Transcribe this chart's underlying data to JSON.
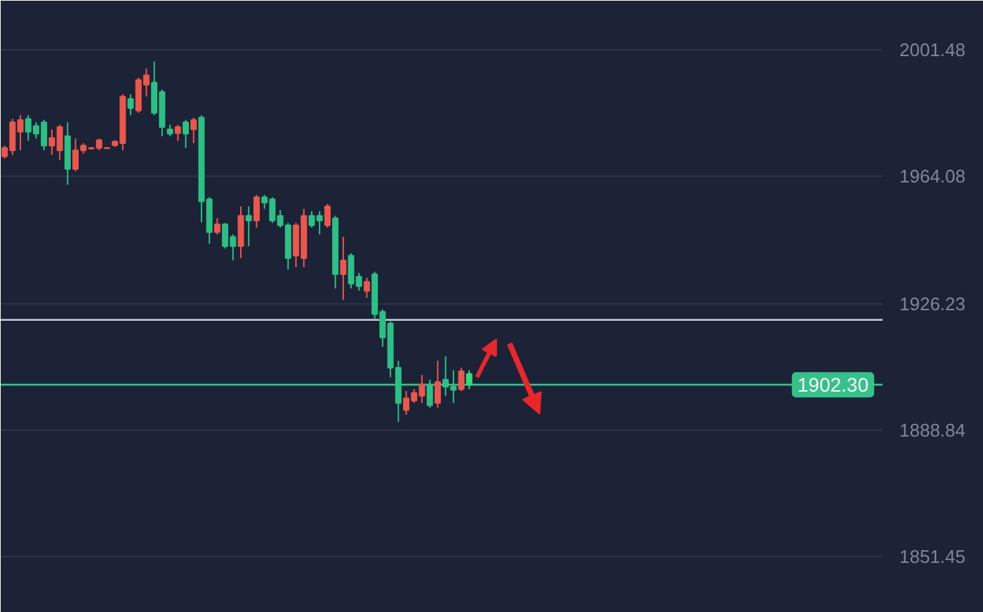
{
  "chart_data": {
    "type": "candlestick",
    "categories": [
      null,
      null,
      null,
      null,
      null,
      null,
      null,
      null,
      null,
      null,
      null,
      null,
      null,
      null,
      null,
      null,
      null,
      null,
      null,
      null,
      null,
      null,
      null,
      null,
      null,
      null,
      null,
      null,
      null,
      null,
      null,
      null,
      null,
      null,
      null,
      null,
      null,
      null,
      null,
      null,
      null,
      null,
      null,
      null,
      null,
      null,
      null,
      null,
      null,
      null,
      null,
      null,
      null,
      null,
      null,
      null,
      null,
      null,
      null,
      null,
      null,
      null,
      null,
      null,
      null,
      null,
      null,
      null,
      null,
      null,
      null,
      null,
      null,
      null,
      null,
      null,
      null,
      null,
      null,
      null,
      null,
      null,
      null,
      null,
      null,
      null,
      null,
      null,
      null,
      null,
      null,
      null,
      null,
      null,
      null,
      null,
      null,
      null,
      null,
      null,
      null,
      null,
      null,
      null,
      null,
      null,
      null,
      null,
      null,
      null,
      null,
      null
    ],
    "ohlc": [
      [
        1969.9,
        1973.1,
        1969.3,
        1972.4
      ],
      [
        1971.7,
        1981.0,
        1970.3,
        1980.0
      ],
      [
        1977.2,
        1982.1,
        1971.7,
        1980.7
      ],
      [
        1981.0,
        1982.1,
        1974.5,
        1977.2
      ],
      [
        1978.9,
        1980.0,
        1975.2,
        1976.6
      ],
      [
        1980.0,
        1980.7,
        1971.7,
        1973.1
      ],
      [
        1973.1,
        1977.9,
        1970.3,
        1975.4
      ],
      [
        1971.7,
        1979.3,
        1968.9,
        1978.6
      ],
      [
        1975.9,
        1980.0,
        1961.5,
        1966.2
      ],
      [
        1966.2,
        1975.2,
        1965.5,
        1971.7
      ],
      [
        1971.7,
        1973.8,
        1970.7,
        1973.1
      ],
      [
        1972.2,
        1972.6,
        1972.0,
        1972.4
      ],
      [
        1972.4,
        1975.2,
        1971.7,
        1974.7
      ],
      [
        1972.3,
        1972.6,
        1972.1,
        1972.4
      ],
      [
        1973.2,
        1974.7,
        1972.7,
        1974.3
      ],
      [
        1973.8,
        1988.3,
        1971.7,
        1987.6
      ],
      [
        1986.9,
        1988.3,
        1982.1,
        1984.2
      ],
      [
        1983.5,
        1993.2,
        1982.8,
        1992.5
      ],
      [
        1991.1,
        1995.9,
        1987.6,
        1993.9
      ],
      [
        1991.8,
        1998.0,
        1982.1,
        1982.8
      ],
      [
        1989.0,
        1989.7,
        1975.9,
        1978.6
      ],
      [
        1977.9,
        1979.3,
        1975.9,
        1976.6
      ],
      [
        1976.8,
        1979.3,
        1974.5,
        1978.6
      ],
      [
        1980.0,
        1980.7,
        1972.4,
        1976.6
      ],
      [
        1977.9,
        1981.4,
        1973.8,
        1980.7
      ],
      [
        1981.4,
        1982.1,
        1950.4,
        1956.6
      ],
      [
        1957.2,
        1957.8,
        1944.0,
        1947.5
      ],
      [
        1947.5,
        1951.6,
        1946.8,
        1949.8
      ],
      [
        1949.8,
        1950.2,
        1942.6,
        1943.3
      ],
      [
        1946.1,
        1946.8,
        1939.1,
        1943.3
      ],
      [
        1943.3,
        1955.1,
        1939.8,
        1952.3
      ],
      [
        1952.3,
        1955.1,
        1943.3,
        1950.9
      ],
      [
        1950.9,
        1958.5,
        1948.8,
        1957.8
      ],
      [
        1957.8,
        1958.5,
        1954.4,
        1956.2
      ],
      [
        1957.2,
        1957.8,
        1950.2,
        1950.9
      ],
      [
        1952.3,
        1954.0,
        1948.8,
        1949.5
      ],
      [
        1949.5,
        1950.2,
        1936.4,
        1939.8
      ],
      [
        1940.5,
        1950.2,
        1937.1,
        1949.5
      ],
      [
        1939.8,
        1954.4,
        1937.1,
        1952.3
      ],
      [
        1952.3,
        1953.7,
        1948.8,
        1949.5
      ],
      [
        1952.3,
        1953.7,
        1946.8,
        1950.9
      ],
      [
        1949.5,
        1955.8,
        1948.8,
        1955.1
      ],
      [
        1951.6,
        1952.3,
        1930.8,
        1935.0
      ],
      [
        1935.0,
        1946.1,
        1927.4,
        1939.1
      ],
      [
        1940.5,
        1941.2,
        1930.8,
        1932.2
      ],
      [
        1934.3,
        1935.4,
        1930.1,
        1931.5
      ],
      [
        1930.1,
        1934.0,
        1928.0,
        1932.8
      ],
      [
        1935.0,
        1935.7,
        1921.8,
        1923.2
      ],
      [
        1923.9,
        1924.6,
        1913.5,
        1916.3
      ],
      [
        1920.4,
        1921.1,
        1904.5,
        1907.3
      ],
      [
        1907.3,
        1909.4,
        1891.3,
        1896.9
      ],
      [
        1894.8,
        1900.4,
        1893.4,
        1898.3
      ],
      [
        1897.6,
        1901.0,
        1896.9,
        1899.9
      ],
      [
        1899.0,
        1905.2,
        1896.9,
        1902.4
      ],
      [
        1902.4,
        1903.8,
        1895.5,
        1896.2
      ],
      [
        1896.9,
        1909.4,
        1895.5,
        1903.1
      ],
      [
        1903.8,
        1910.7,
        1899.0,
        1901.7
      ],
      [
        1901.7,
        1906.6,
        1896.9,
        1900.8
      ],
      [
        1901.0,
        1907.3,
        1900.4,
        1906.3
      ],
      [
        1905.5,
        1906.6,
        1901.0,
        1902.3
      ],
      null,
      null,
      null,
      null,
      null,
      null,
      null,
      null,
      null,
      null,
      null,
      null,
      null,
      null,
      null,
      null,
      null,
      null,
      null,
      null,
      null,
      null,
      null,
      null,
      null,
      null,
      null,
      null,
      null,
      null,
      null,
      null,
      null,
      null,
      null,
      null,
      null,
      null,
      null,
      null,
      null,
      null,
      null,
      null,
      null,
      null,
      null,
      null,
      null,
      null,
      null,
      null
    ],
    "colors": [
      "#e9574d",
      "#e9574d",
      "#e9574d",
      "#2cbf86",
      "#2cbf86",
      "#2cbf86",
      "#e9574d",
      "#e9574d",
      "#2cbf86",
      "#e9574d",
      "#e9574d",
      "#e9574d",
      "#e9574d",
      "#e9574d",
      "#e9574d",
      "#e9574d",
      "#2cbf86",
      "#e9574d",
      "#e9574d",
      "#2cbf86",
      "#2cbf86",
      "#2cbf86",
      "#e9574d",
      "#2cbf86",
      "#e9574d",
      "#2cbf86",
      "#2cbf86",
      "#e9574d",
      "#2cbf86",
      "#2cbf86",
      "#e9574d",
      "#2cbf86",
      "#e9574d",
      "#2cbf86",
      "#2cbf86",
      "#2cbf86",
      "#2cbf86",
      "#e9574d",
      "#e9574d",
      "#2cbf86",
      "#2cbf86",
      "#e9574d",
      "#2cbf86",
      "#e9574d",
      "#2cbf86",
      "#2cbf86",
      "#e9574d",
      "#2cbf86",
      "#2cbf86",
      "#2cbf86",
      "#2cbf86",
      "#e9574d",
      "#e9574d",
      "#e9574d",
      "#2cbf86",
      "#e9574d",
      "#2cbf86",
      "#2cbf86",
      "#e9574d",
      "#3ad67a",
      null,
      null,
      null,
      null,
      null,
      null,
      null,
      null,
      null,
      null,
      null,
      null,
      null,
      null,
      null,
      null,
      null,
      null,
      null,
      null,
      null,
      null,
      null,
      null,
      null,
      null,
      null,
      null,
      null,
      null,
      null,
      null,
      null,
      null,
      null,
      null,
      null,
      null,
      null,
      null,
      null,
      null,
      null,
      null,
      null,
      null,
      null,
      null,
      null,
      null,
      null,
      null
    ],
    "ylim": [
      1834.8,
      2016.0
    ],
    "yticks": [
      1851.45,
      1888.84,
      1926.23,
      1964.08,
      2001.48
    ],
    "grid": "y",
    "tick_labels": "y",
    "ref_lines": [
      {
        "axis": "y",
        "value": 1921.5,
        "color": "#c9ced8"
      },
      {
        "axis": "y",
        "value": 1902.3,
        "label": "1902.30",
        "color": "#34c28a"
      }
    ]
  }
}
